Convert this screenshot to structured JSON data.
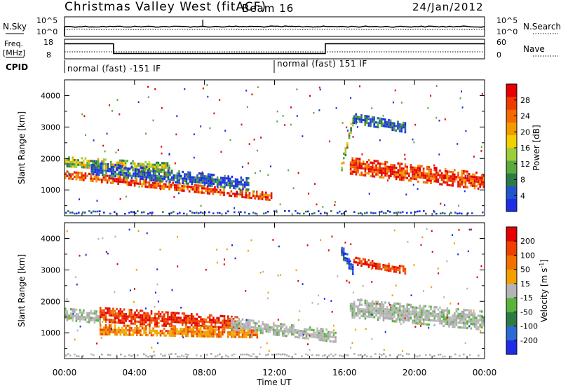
{
  "header": {
    "title": "Christmas Valley West (fitACF)",
    "beam": "Beam 16",
    "date": "24/Jan/2012"
  },
  "top_panels": {
    "nsky_label": "N.Sky",
    "nsky_ticks": [
      "10^5",
      "10^0"
    ],
    "nsearch_label": "N.Search",
    "nsearch_ticks": [
      "10^5",
      "10^0"
    ],
    "freq_label": "Freq.",
    "freq_unit": "[MHz]",
    "freq_ticks": [
      "18",
      "8"
    ],
    "nave_label": "Nave",
    "nave_ticks": [
      "60",
      "0"
    ],
    "cpid_label": "CPID",
    "cpid_segments": [
      {
        "start_hour": 0,
        "end_hour": 12,
        "text": "normal (fast) -151 IF"
      },
      {
        "start_hour": 12,
        "end_hour": 24,
        "text": "normal (fast) 151 IF"
      }
    ],
    "freq_steps": [
      {
        "start_hour": 0,
        "end_hour": 2.8,
        "mhz": 16.8
      },
      {
        "start_hour": 2.8,
        "end_hour": 14.9,
        "mhz": 9.8
      },
      {
        "start_hour": 14.9,
        "end_hour": 24,
        "mhz": 16.8
      }
    ]
  },
  "chart_data": [
    {
      "type": "heatmap",
      "name": "Power",
      "ylabel": "Slant Range [km]",
      "yticks": [
        "1000",
        "2000",
        "3000",
        "4000"
      ],
      "ylim": [
        180,
        4500
      ],
      "xlim_hours": [
        0,
        24
      ],
      "colorbar": {
        "label": "Power [dB]",
        "ticks": [
          "4",
          "8",
          "12",
          "16",
          "20",
          "24",
          "28"
        ],
        "colors": [
          "#1e2ee6",
          "#2255cc",
          "#2d7a46",
          "#5aaa3c",
          "#9cce3c",
          "#f0d000",
          "#f29a00",
          "#f26a00",
          "#ee3a00",
          "#e60000"
        ]
      },
      "echo_bands": [
        {
          "from_hour": 0.0,
          "to_hour": 11.8,
          "range_km_start": 1500,
          "range_km_end": 800,
          "width_km": 250,
          "level": "high"
        },
        {
          "from_hour": 0.0,
          "to_hour": 6.0,
          "range_km_start": 1900,
          "range_km_end": 1700,
          "width_km": 350,
          "level": "medium"
        },
        {
          "from_hour": 1.5,
          "to_hour": 10.5,
          "range_km_start": 1700,
          "range_km_end": 1200,
          "width_km": 400,
          "level": "low"
        },
        {
          "from_hour": 15.8,
          "to_hour": 16.5,
          "range_km_start": 1800,
          "range_km_end": 3400,
          "width_km": 300,
          "level": "medium"
        },
        {
          "from_hour": 16.3,
          "to_hour": 24.0,
          "range_km_start": 1800,
          "range_km_end": 1300,
          "width_km": 500,
          "level": "high"
        },
        {
          "from_hour": 16.5,
          "to_hour": 19.5,
          "range_km_start": 3300,
          "range_km_end": 3000,
          "width_km": 300,
          "level": "low"
        }
      ]
    },
    {
      "type": "heatmap",
      "name": "Velocity",
      "ylabel": "Slant Range [km]",
      "yticks": [
        "1000",
        "2000",
        "3000",
        "4000"
      ],
      "ylim": [
        180,
        4500
      ],
      "xlim_hours": [
        0,
        24
      ],
      "xlabel": "Time UT",
      "xticks": [
        "00:00",
        "04:00",
        "08:00",
        "12:00",
        "16:00",
        "20:00",
        "00:00"
      ],
      "colorbar": {
        "label": "Velocity [m s^-1]",
        "ticks": [
          "200",
          "100",
          "50",
          "15",
          "-15",
          "-50",
          "-100",
          "-200"
        ],
        "colors": [
          "#1e2ee6",
          "#2d6ad2",
          "#2d7a46",
          "#5ab43c",
          "#b4b4b4",
          "#f0a000",
          "#f07000",
          "#ee4000",
          "#e60000"
        ]
      },
      "echo_bands": [
        {
          "from_hour": 0.0,
          "to_hour": 2.0,
          "range_km_start": 1600,
          "range_km_end": 1500,
          "width_km": 400,
          "level": "zero"
        },
        {
          "from_hour": 2.0,
          "to_hour": 10.0,
          "range_km_start": 1600,
          "range_km_end": 1300,
          "width_km": 450,
          "level": "away"
        },
        {
          "from_hour": 2.0,
          "to_hour": 11.0,
          "range_km_start": 1100,
          "range_km_end": 1000,
          "width_km": 350,
          "level": "away-low"
        },
        {
          "from_hour": 9.5,
          "to_hour": 15.5,
          "range_km_start": 1300,
          "range_km_end": 900,
          "width_km": 400,
          "level": "zero"
        },
        {
          "from_hour": 15.8,
          "to_hour": 16.5,
          "range_km_start": 3600,
          "range_km_end": 3000,
          "width_km": 400,
          "level": "toward"
        },
        {
          "from_hour": 16.3,
          "to_hour": 24.0,
          "range_km_start": 1800,
          "range_km_end": 1400,
          "width_km": 600,
          "level": "zero"
        },
        {
          "from_hour": 16.5,
          "to_hour": 19.5,
          "range_km_start": 3300,
          "range_km_end": 3000,
          "width_km": 250,
          "level": "away"
        }
      ]
    }
  ]
}
